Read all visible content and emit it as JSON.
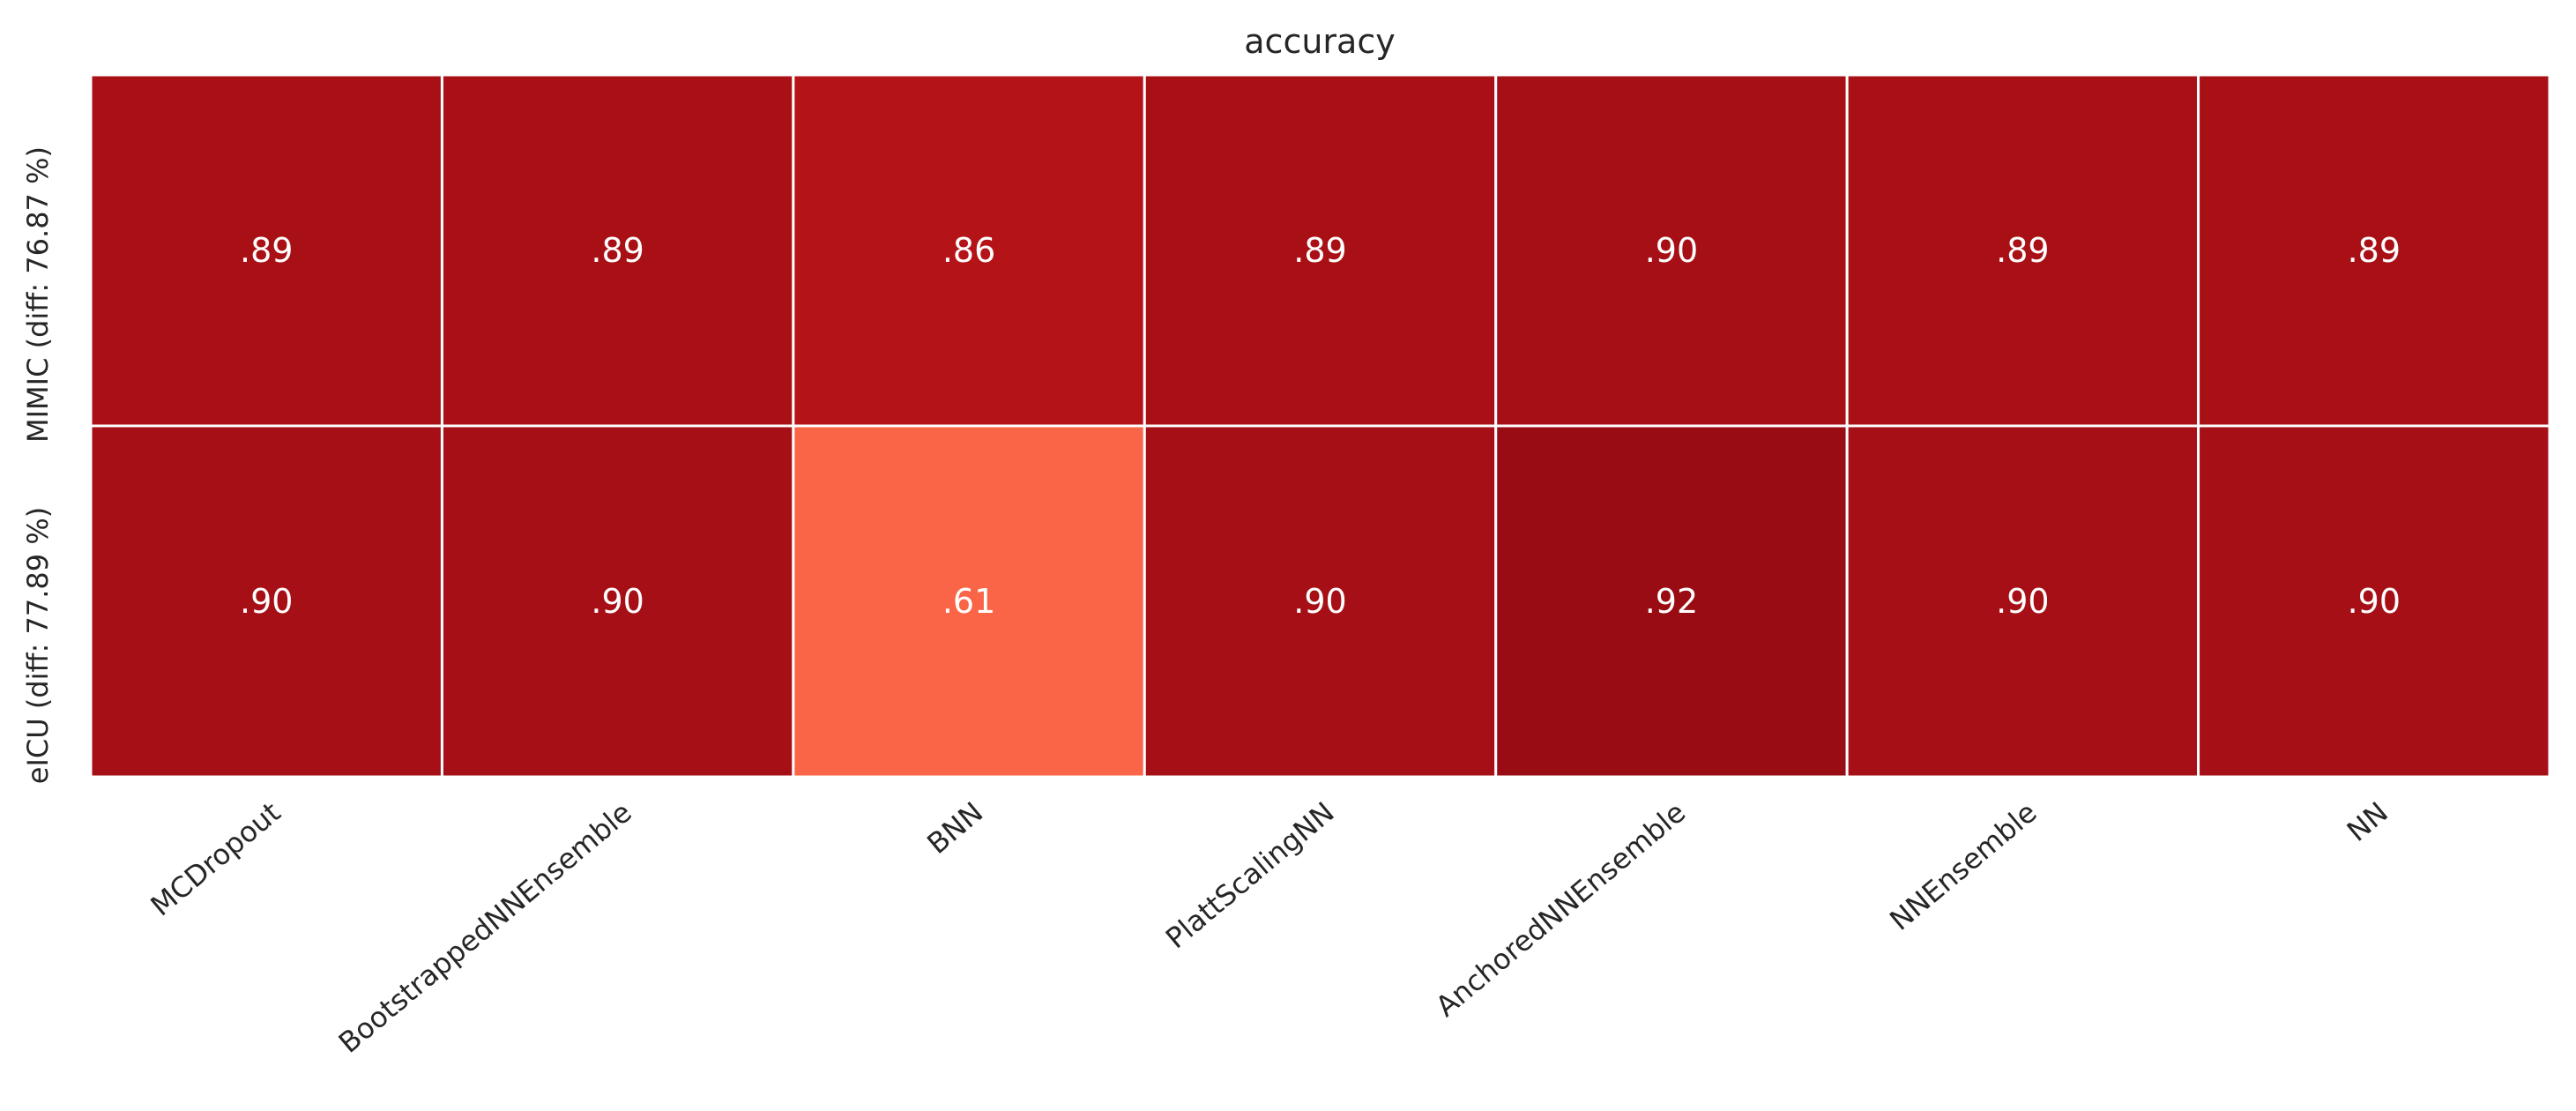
{
  "chart_data": {
    "type": "heatmap",
    "title": "accuracy",
    "columns": [
      "MCDropout",
      "BootstrappedNNEnsemble",
      "BNN",
      "PlattScalingNN",
      "AnchoredNNEnsemble",
      "NNEnsemble",
      "NN"
    ],
    "rows": [
      "MIMIC (diff: 76.87 %)",
      "eICU (diff: 77.89 %)"
    ],
    "values": [
      [
        0.89,
        0.89,
        0.86,
        0.89,
        0.9,
        0.89,
        0.89
      ],
      [
        0.9,
        0.9,
        0.61,
        0.9,
        0.92,
        0.9,
        0.9
      ]
    ],
    "labels": [
      [
        ".89",
        ".89",
        ".86",
        ".89",
        ".90",
        ".89",
        ".89"
      ],
      [
        ".90",
        ".90",
        ".61",
        ".90",
        ".92",
        ".90",
        ".90"
      ]
    ],
    "colorscale": "Reds",
    "grid": true,
    "legend": "none"
  }
}
